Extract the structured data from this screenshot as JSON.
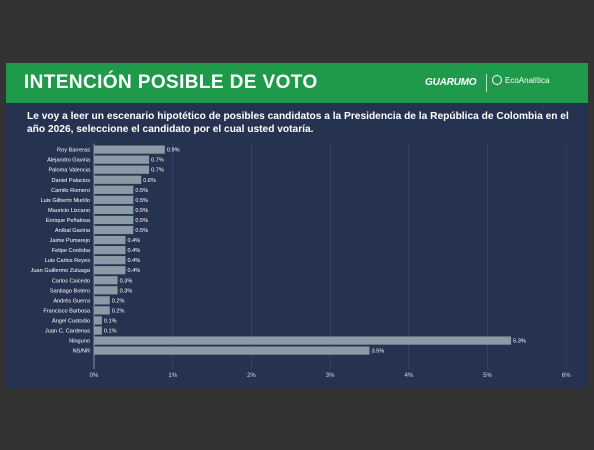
{
  "header": {
    "title": "INTENCIÓN POSIBLE DE VOTO",
    "brand_primary": "GUARUMO",
    "brand_secondary": "EcoAnalítica"
  },
  "question": "Le voy a leer un escenario hipotético de posibles candidatos a la Presidencia de la República de Colombia en el año 2026, seleccione el candidato por el cual usted votaría.",
  "colors": {
    "background": "#263350",
    "header": "#1f9a4b",
    "bar": "#8a9ba6",
    "page": "#333333"
  },
  "chart_data": {
    "type": "bar",
    "orientation": "horizontal",
    "categories": [
      "Roy Barreras",
      "Alejandro Gaviria",
      "Paloma Valencia",
      "Daniel Palacios",
      "Camilo Romero",
      "Luis Gilberto Murillo",
      "Mauricio Lizcano",
      "Enrique Peñalosa",
      "Aníbal Gaviria",
      "Jaime Pumarejo",
      "Felipe Cordoba",
      "Luis Carlos Reyes",
      "Juan Guillermo Zuluaga",
      "Carlos Caicedo",
      "Santiago Botero",
      "Andrés Guerra",
      "Francisco Barbosa",
      "Ángel Custodio",
      "Juan C. Cardenas",
      "Ninguno",
      "NS/NR"
    ],
    "values": [
      0.9,
      0.7,
      0.7,
      0.6,
      0.5,
      0.5,
      0.5,
      0.5,
      0.5,
      0.4,
      0.4,
      0.4,
      0.4,
      0.3,
      0.3,
      0.2,
      0.2,
      0.1,
      0.1,
      5.3,
      3.5
    ],
    "value_labels": [
      "0.9%",
      "0.7%",
      "0.7%",
      "0.6%",
      "0.5%",
      "0.5%",
      "0.5%",
      "0.5%",
      "0.5%",
      "0.4%",
      "0.4%",
      "0.4%",
      "0.4%",
      "0.3%",
      "0.3%",
      "0.2%",
      "0.2%",
      "0.1%",
      "0.1%",
      "5.3%",
      "3.5%"
    ],
    "xticks": [
      "0%",
      "1%",
      "2%",
      "3%",
      "4%",
      "5%",
      "6%"
    ],
    "xlim": [
      0,
      6
    ],
    "grid": true
  }
}
